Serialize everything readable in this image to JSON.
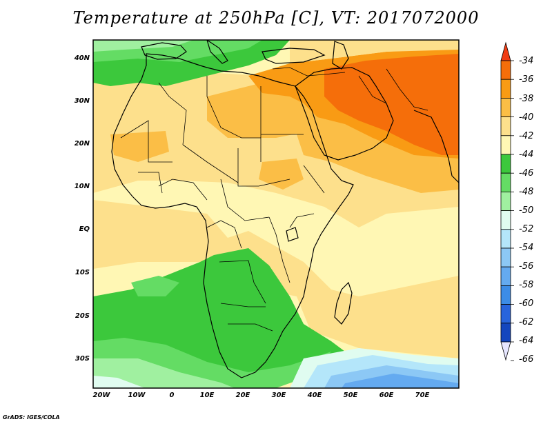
{
  "title": "Temperature at 250hPa [C], VT: 2017072000",
  "credit": "GrADS: IGES/COLA",
  "map": {
    "lat_labels": [
      "40N",
      "30N",
      "20N",
      "10N",
      "EQ",
      "10S",
      "20S",
      "30S"
    ],
    "lat_values": [
      40,
      30,
      20,
      10,
      0,
      -10,
      -20,
      -30
    ],
    "lon_labels": [
      "20W",
      "10W",
      "0",
      "10E",
      "20E",
      "30E",
      "40E",
      "50E",
      "60E",
      "70E"
    ],
    "lon_values": [
      -20,
      -10,
      0,
      10,
      20,
      30,
      40,
      50,
      60,
      70
    ],
    "lon_range": [
      -22,
      80
    ],
    "lat_range": [
      -37,
      45
    ]
  },
  "colorbar": {
    "labels": [
      "-34",
      "-36",
      "-38",
      "-40",
      "-42",
      "-44",
      "-46",
      "-48",
      "-50",
      "-52",
      "-54",
      "-56",
      "-58",
      "-60",
      "-62",
      "-64",
      "-66"
    ],
    "colors": [
      "#f03c14",
      "#f56e0a",
      "#f99b14",
      "#fbbe46",
      "#fde08c",
      "#fff7b4",
      "#3cc83c",
      "#64dc64",
      "#a0f0a0",
      "#e0fcf0",
      "#b4e6fa",
      "#8cc8f5",
      "#64aaf0",
      "#3c8ce6",
      "#2864dc",
      "#1446be",
      "#0a1e82"
    ]
  },
  "colors": {
    "hot": "#f56e0a",
    "orange": "#f99b14",
    "light_orange": "#fbbe46",
    "tan": "#fde08c",
    "pale_yellow": "#fff7b4",
    "green_dark": "#3cc83c",
    "green_mid": "#64dc64",
    "green_light": "#a0f0a0",
    "cyan_pale": "#e0fcf0",
    "blue_light": "#b4e6fa",
    "blue_mid": "#8cc8f5",
    "blue": "#64aaf0"
  }
}
